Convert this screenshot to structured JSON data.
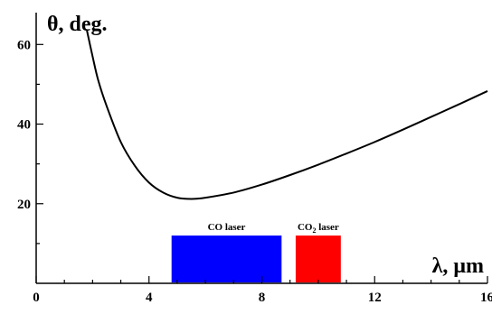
{
  "chart_data": {
    "type": "line",
    "xlabel_symbol": "λ,",
    "xlabel_unit": "μm",
    "ylabel": "θ, deg.",
    "xlim": [
      0,
      16
    ],
    "ylim": [
      0,
      68
    ],
    "x_ticks": [
      0,
      4,
      8,
      12,
      16
    ],
    "y_ticks": [
      20,
      40,
      60
    ],
    "grid": false,
    "series": [
      {
        "color": "#000000",
        "x": [
          1.8,
          2.0,
          2.2,
          2.5,
          3.0,
          3.5,
          4.0,
          4.5,
          5.0,
          5.5,
          6.0,
          7.0,
          8.0,
          9.0,
          10.0,
          11.0,
          12.0,
          13.0,
          14.0,
          15.0,
          16.0
        ],
        "y": [
          63.5,
          57.0,
          51.0,
          44.5,
          35.5,
          29.5,
          25.3,
          22.8,
          21.5,
          21.2,
          21.5,
          22.8,
          24.8,
          27.2,
          29.8,
          32.6,
          35.5,
          38.6,
          41.8,
          45.0,
          48.3
        ]
      }
    ],
    "regions": [
      {
        "label": "CO laser",
        "x_start": 4.8,
        "x_end": 8.7,
        "y_top": 12,
        "color": "#0000ff"
      },
      {
        "label_main": "CO",
        "label_sub": "2",
        "label_rest": " laser",
        "x_start": 9.2,
        "x_end": 10.8,
        "y_top": 12,
        "color": "#ff0000"
      }
    ]
  }
}
